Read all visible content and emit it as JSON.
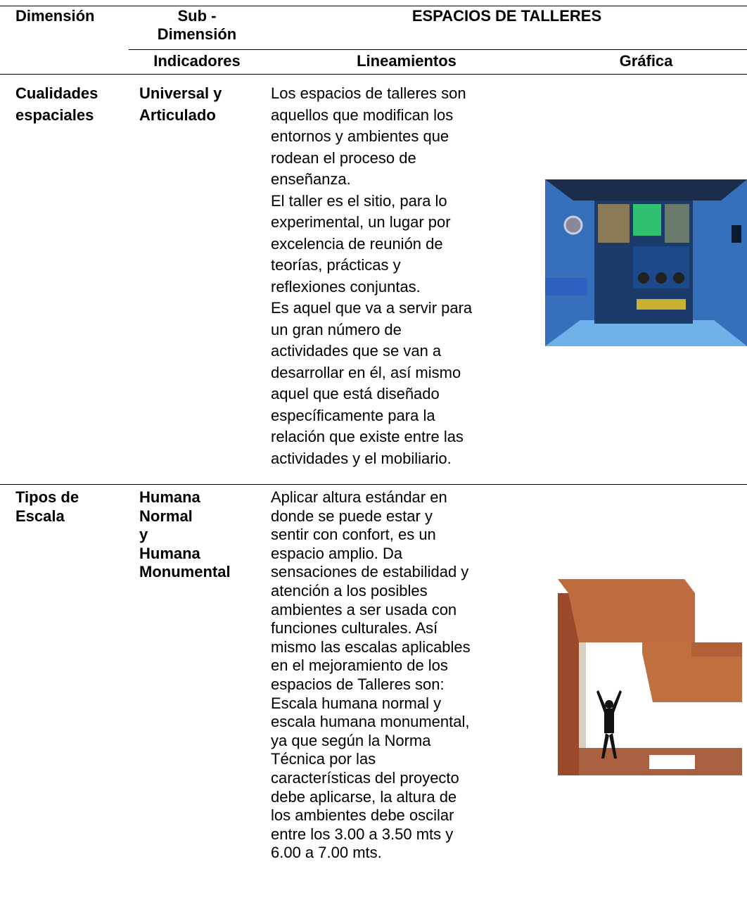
{
  "header": {
    "dimension": "Dimensión",
    "subdimension": [
      "Sub -",
      "Dimensión"
    ],
    "title": "ESPACIOS DE TALLERES",
    "indicators": "Indicadores",
    "guidelines": "Lineamientos",
    "graphic": "Gráfica"
  },
  "rows": [
    {
      "dimension": [
        "Cualidades",
        "espaciales"
      ],
      "indicator": [
        "Universal y",
        "Articulado"
      ],
      "guidelines": [
        "Los espacios de talleres son",
        "aquellos que modifican los",
        "entornos y ambientes que",
        "rodean el proceso de",
        "enseñanza.",
        "El taller es el sitio, para lo",
        "experimental, un lugar por",
        "excelencia de reunión de",
        "teorías, prácticas y",
        "reflexiones conjuntas.",
        "Es aquel que va a servir para",
        "un gran número de",
        "actividades que se van a",
        "desarrollar en él, así mismo",
        "aquel que está diseñado",
        "específicamente para la",
        "relación que existe entre las",
        "actividades y el mobiliario."
      ]
    },
    {
      "dimension": [
        "Tipos de",
        "Escala"
      ],
      "indicator": [
        "Humana",
        "Normal",
        "y",
        "Humana",
        "Monumental"
      ],
      "guidelines": [
        "Aplicar altura estándar en",
        "donde se puede estar y",
        "sentir con confort, es un",
        "espacio amplio. Da",
        "sensaciones de estabilidad y",
        "atención a los posibles",
        "ambientes a ser usada con",
        "funciones culturales. Así",
        "mismo las escalas aplicables",
        "en el mejoramiento de los",
        "espacios de Talleres son:",
        "Escala humana normal y",
        "escala humana monumental,",
        "ya que según la Norma",
        "Técnica por las",
        "características del proyecto",
        "debe aplicarse, la altura de",
        "los ambientes debe oscilar",
        "entre los 3.00 a 3.50 mts y",
        "6.00 a 7.00 mts."
      ]
    }
  ]
}
